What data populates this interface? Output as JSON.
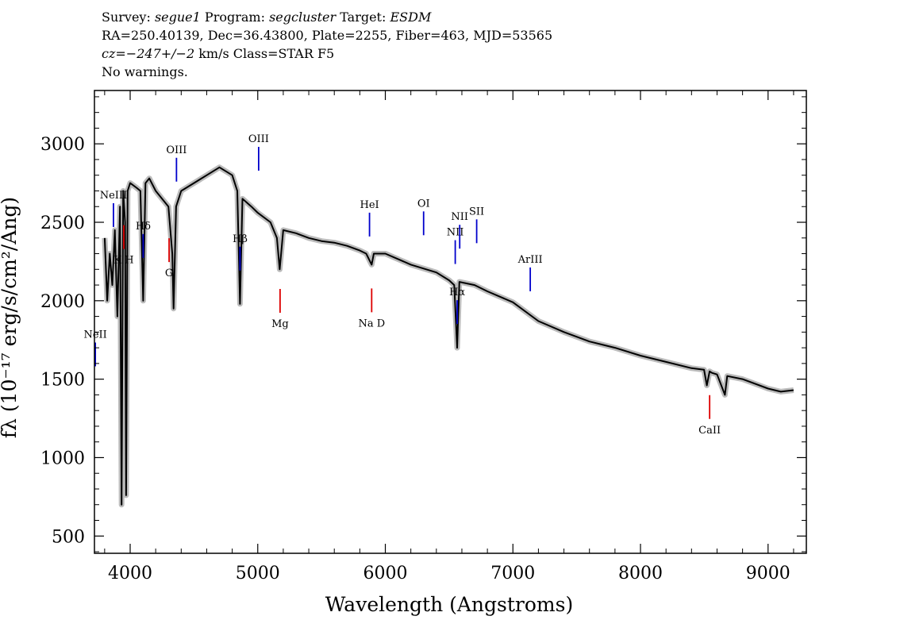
{
  "header": {
    "survey_label": "Survey:",
    "survey": "segue1",
    "program_label": "Program:",
    "program": "segcluster",
    "target_label": "Target:",
    "target": "ESDM",
    "coords": "RA=250.40139, Dec=36.43800, Plate=2255, Fiber=463, MJD=53565",
    "cz": "cz=−247+/−2",
    "cz_units": "km/s Class=STAR F5",
    "warnings": "No warnings."
  },
  "colors": {
    "emission": "#0000cc",
    "absorption": "#dd0000",
    "flux": "#000000",
    "error_band": "#bbbbbb"
  },
  "chart_data": {
    "type": "line",
    "title": "",
    "xlabel": "Wavelength (Angstroms)",
    "ylabel": "fλ (10⁻¹⁷ erg/s/cm²/Ang)",
    "xlim": [
      3720,
      9300
    ],
    "ylim": [
      390,
      3340
    ],
    "x_ticks": [
      4000,
      5000,
      6000,
      7000,
      8000,
      9000
    ],
    "y_ticks": [
      500,
      1000,
      1500,
      2000,
      2500,
      3000
    ],
    "grid": false,
    "series": [
      {
        "x": [
          3800,
          3820,
          3840,
          3860,
          3880,
          3900,
          3920,
          3933,
          3945,
          3960,
          3968,
          3980,
          4000,
          4050,
          4080,
          4102,
          4120,
          4150,
          4200,
          4250,
          4300,
          4330,
          4340,
          4360,
          4400,
          4500,
          4600,
          4700,
          4800,
          4840,
          4861,
          4880,
          4950,
          5000,
          5100,
          5150,
          5172,
          5200,
          5300,
          5400,
          5500,
          5600,
          5700,
          5800,
          5850,
          5893,
          5910,
          6000,
          6200,
          6400,
          6500,
          6540,
          6563,
          6580,
          6700,
          6800,
          7000,
          7200,
          7400,
          7600,
          7800,
          8000,
          8200,
          8400,
          8498,
          8520,
          8542,
          8560,
          8600,
          8662,
          8680,
          8800,
          9000,
          9100,
          9200
        ],
        "y": [
          2400,
          2000,
          2300,
          2100,
          2450,
          1900,
          2600,
          700,
          2700,
          2500,
          760,
          2700,
          2750,
          2720,
          2700,
          2000,
          2750,
          2780,
          2700,
          2650,
          2600,
          2300,
          1950,
          2600,
          2700,
          2750,
          2800,
          2850,
          2800,
          2700,
          1980,
          2650,
          2600,
          2560,
          2500,
          2400,
          2200,
          2450,
          2430,
          2400,
          2380,
          2370,
          2350,
          2320,
          2300,
          2230,
          2300,
          2300,
          2230,
          2180,
          2130,
          2100,
          1700,
          2120,
          2100,
          2060,
          1990,
          1870,
          1800,
          1740,
          1700,
          1650,
          1610,
          1570,
          1560,
          1460,
          1550,
          1540,
          1530,
          1400,
          1520,
          1500,
          1440,
          1420,
          1430
        ]
      }
    ],
    "emission_lines": [
      {
        "label": "NeII",
        "x": 3727
      },
      {
        "label": "NeIII",
        "x": 3869
      },
      {
        "label": "Hδ",
        "x": 4102
      },
      {
        "label": "OIII",
        "x": 4363
      },
      {
        "label": "Hβ",
        "x": 4861
      },
      {
        "label": "OIII",
        "x": 5007
      },
      {
        "label": "HeI",
        "x": 5876
      },
      {
        "label": "OI",
        "x": 6300
      },
      {
        "label": "NII",
        "x": 6548
      },
      {
        "label": "Hα",
        "x": 6563
      },
      {
        "label": "NII",
        "x": 6583
      },
      {
        "label": "SII",
        "x": 6716
      },
      {
        "label": "ArIII",
        "x": 7136
      }
    ],
    "absorption_lines": [
      {
        "label": "K H",
        "x": 3950
      },
      {
        "label": "G",
        "x": 4305
      },
      {
        "label": "Mg",
        "x": 5175
      },
      {
        "label": "Na D",
        "x": 5893
      },
      {
        "label": "CaII",
        "x": 8542
      }
    ]
  }
}
